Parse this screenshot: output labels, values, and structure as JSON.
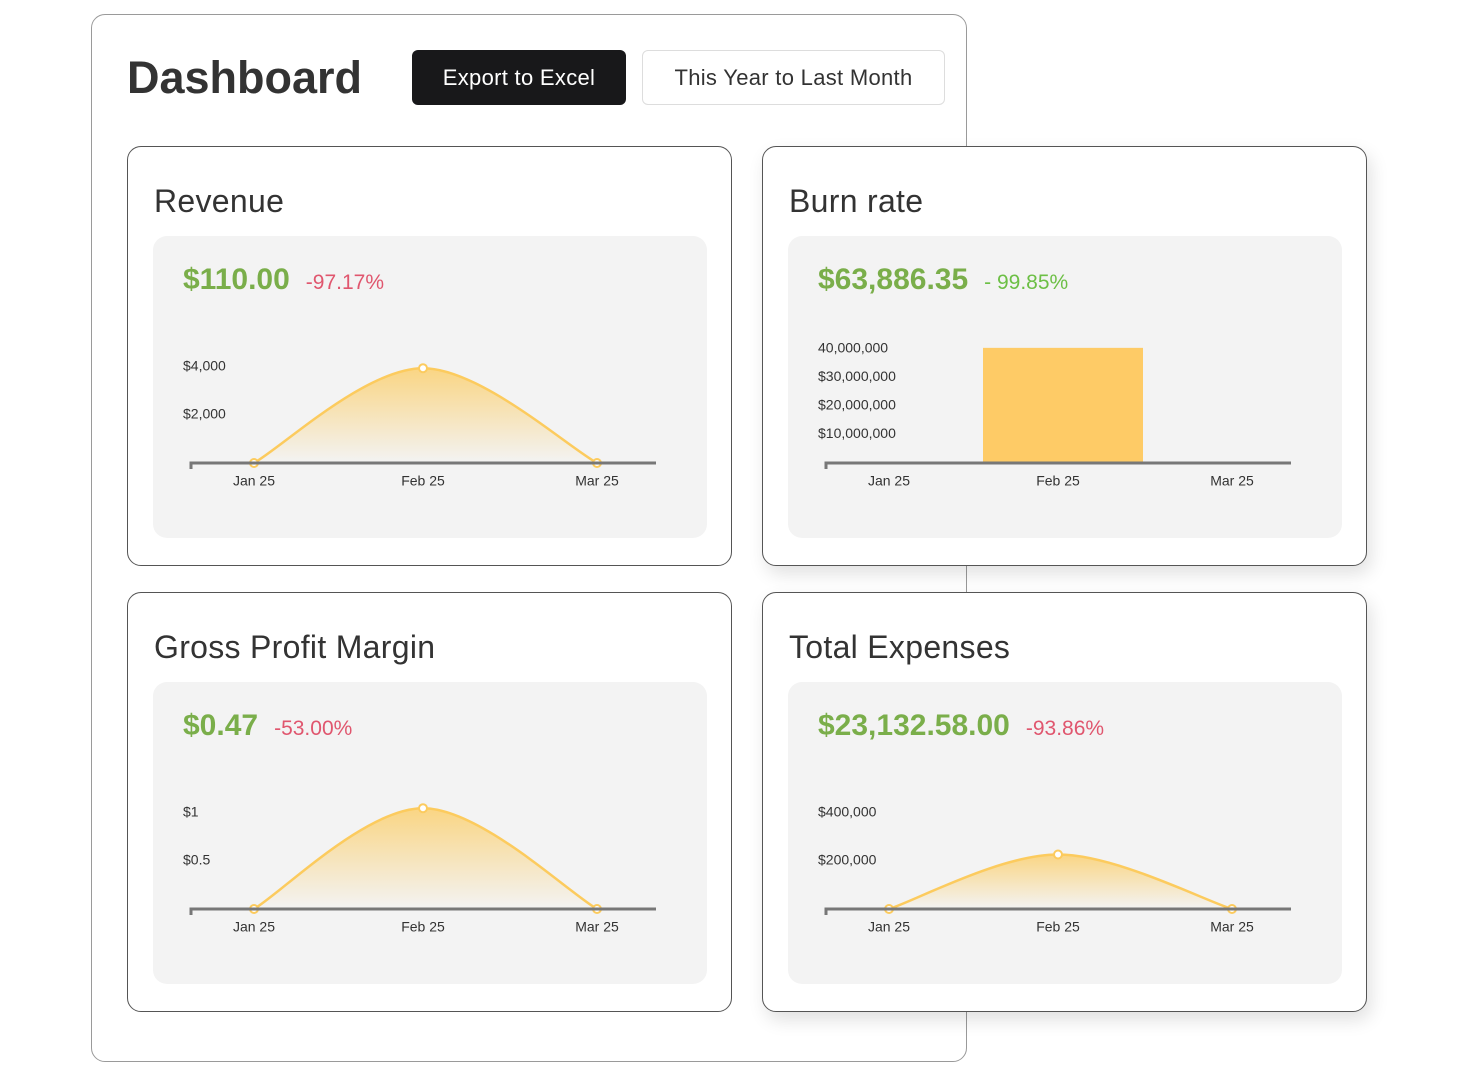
{
  "header": {
    "title": "Dashboard",
    "buttons": [
      "Export to Excel",
      "This Year to Last Month"
    ]
  },
  "value_color": "#7aae4a",
  "cards": [
    {
      "title": "Revenue",
      "value": "$110.00",
      "change": "-97.17%",
      "change_color": "#e0566e",
      "chart": {
        "type": "area",
        "categories": [
          "Jan 25",
          "Feb 25",
          "Mar 25"
        ],
        "values": [
          0,
          3950,
          0
        ],
        "color": "#fccb5e",
        "ylim": [
          0,
          5000
        ],
        "yticks": [
          {
            "value": 4000,
            "label": "$4,000"
          },
          {
            "value": 2000,
            "label": "$2,000"
          }
        ]
      }
    },
    {
      "title": "Burn rate",
      "value": "$63,886.35",
      "change": "- 99.85%",
      "change_color": "#6cbf45",
      "chart": {
        "type": "bar",
        "categories": [
          "Jan 25",
          "Feb 25",
          "Mar 25"
        ],
        "values": [
          0,
          40300000,
          0
        ],
        "color": "#fecb66",
        "ylim": [
          0,
          42000000
        ],
        "yticks": [
          {
            "value": 40000000,
            "label": "40,000,000"
          },
          {
            "value": 30000000,
            "label": "$30,000,000"
          },
          {
            "value": 20000000,
            "label": "$20,000,000"
          },
          {
            "value": 10000000,
            "label": "$10,000,000"
          }
        ]
      }
    },
    {
      "title": "Gross Profit Margin",
      "value": "$0.47",
      "change": "-53.00%",
      "change_color": "#e0566e",
      "chart": {
        "type": "area",
        "categories": [
          "Jan 25",
          "Feb 25",
          "Mar 25"
        ],
        "values": [
          0,
          1.05,
          0
        ],
        "color": "#fccb5e",
        "ylim": [
          0,
          1.25
        ],
        "yticks": [
          {
            "value": 1,
            "label": "$1"
          },
          {
            "value": 0.5,
            "label": "$0.5"
          }
        ]
      }
    },
    {
      "title": "Total Expenses",
      "value": "$23,132.58.00",
      "change": "-93.86%",
      "change_color": "#e0566e",
      "chart": {
        "type": "area",
        "categories": [
          "Jan 25",
          "Feb 25",
          "Mar 25"
        ],
        "values": [
          0,
          227000,
          0
        ],
        "color": "#fccb5e",
        "ylim": [
          0,
          500000
        ],
        "yticks": [
          {
            "value": 400000,
            "label": "$400,000"
          },
          {
            "value": 200000,
            "label": "$200,000"
          }
        ]
      }
    }
  ]
}
